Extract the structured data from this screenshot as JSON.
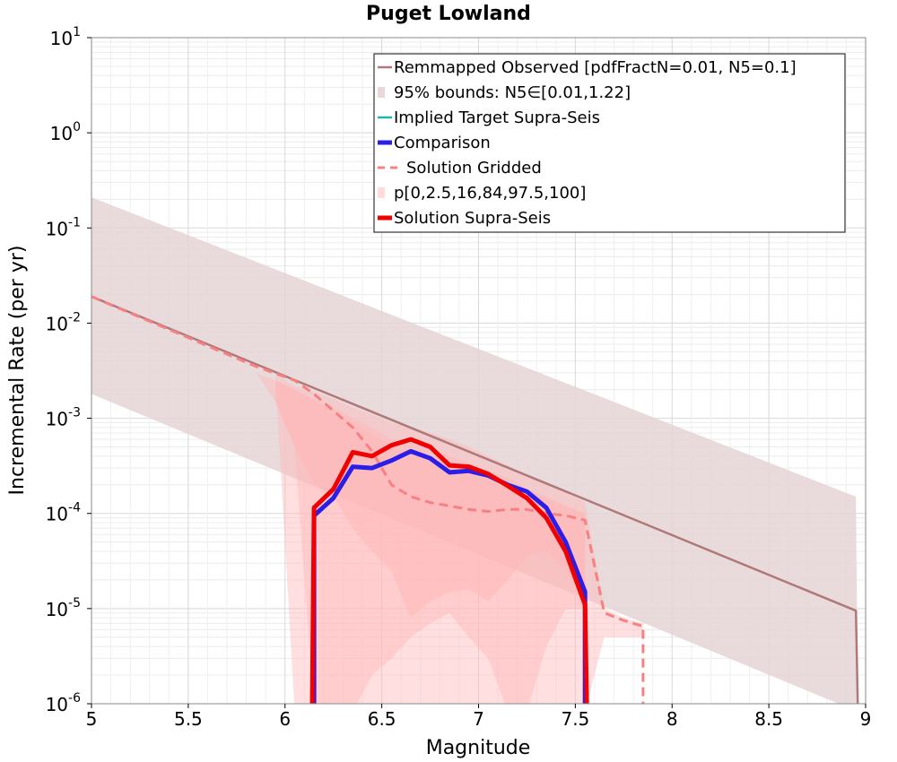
{
  "chart_data": {
    "type": "line",
    "title": "Puget Lowland",
    "xlabel": "Magnitude",
    "ylabel": "Incremental Rate (per yr)",
    "xlim": [
      5,
      9
    ],
    "ylim": [
      1e-06,
      10
    ],
    "yscale": "log",
    "grid": true,
    "legend_position": "top-right",
    "x_ticks": [
      "5",
      "5.5",
      "6",
      "6.5",
      "7",
      "7.5",
      "8",
      "8.5",
      "9"
    ],
    "y_tick_exponents": [
      "1",
      "0",
      "-1",
      "-2",
      "-3",
      "-4",
      "-5",
      "-6"
    ],
    "y_tick_base": "10",
    "colors": {
      "observed": "#b07878",
      "bounds95": "#e5d4d6",
      "implied": "#1fb5b5",
      "comparison": "#2a1ee8",
      "gridded": "#f88080",
      "percentile": "#ffd8d8",
      "supra": "#f00000"
    },
    "legend": [
      {
        "key": "observed",
        "label": "Remmapped Observed [pdfFractN=0.01, N5=0.1]",
        "style": "line"
      },
      {
        "key": "bounds95",
        "label": "95% bounds: N5∈[0.01,1.22]",
        "style": "patch"
      },
      {
        "key": "implied",
        "label": "Implied Target Supra-Seis",
        "style": "line"
      },
      {
        "key": "comparison",
        "label": "Comparison",
        "style": "thick"
      },
      {
        "key": "gridded",
        "label": "Solution Gridded",
        "style": "dashed"
      },
      {
        "key": "percentile",
        "label": "p[0,2.5,16,84,97.5,100]",
        "style": "patch"
      },
      {
        "key": "supra",
        "label": "Solution Supra-Seis",
        "style": "thick"
      }
    ],
    "series": [
      {
        "name": "Remmapped Observed [pdfFractN=0.01, N5=0.1]",
        "key": "observed",
        "x": [
          5.0,
          8.95,
          8.96
        ],
        "y": [
          0.019,
          9.5e-06,
          5e-07
        ]
      },
      {
        "name": "95% bounds: N5∈[0.01,1.22]",
        "key": "bounds95",
        "band": true,
        "x": [
          5.0,
          8.95,
          8.96
        ],
        "upper": [
          0.21,
          0.00015,
          5e-07
        ],
        "lower": [
          0.0018,
          5e-07,
          5e-07
        ]
      },
      {
        "name": "Solution Gridded",
        "key": "gridded",
        "x": [
          5.0,
          5.85,
          6.05,
          6.15,
          6.25,
          6.35,
          6.45,
          6.55,
          6.65,
          6.75,
          6.85,
          6.95,
          7.05,
          7.15,
          7.25,
          7.35,
          7.45,
          7.55,
          7.65,
          7.75,
          7.85,
          7.85
        ],
        "y": [
          0.019,
          0.0035,
          0.0025,
          0.0018,
          0.0012,
          0.0008,
          0.00045,
          0.0002,
          0.00015,
          0.00013,
          0.00012,
          0.00011,
          0.000105,
          0.00011,
          0.00011,
          0.0001,
          9.5e-05,
          8.5e-05,
          9e-06,
          7.5e-06,
          6.5e-06,
          5e-07
        ]
      },
      {
        "name": "Comparison",
        "key": "comparison",
        "x": [
          6.15,
          6.15,
          6.25,
          6.35,
          6.45,
          6.55,
          6.65,
          6.75,
          6.85,
          6.95,
          7.05,
          7.15,
          7.25,
          7.35,
          7.45,
          7.55,
          7.55
        ],
        "y": [
          5e-07,
          9.5e-05,
          0.000145,
          0.00031,
          0.0003,
          0.00036,
          0.00045,
          0.00038,
          0.00027,
          0.00028,
          0.00025,
          0.0002,
          0.00017,
          0.000115,
          5e-05,
          1.5e-05,
          5e-07
        ]
      },
      {
        "name": "Solution Supra-Seis",
        "key": "supra",
        "x": [
          6.14,
          6.15,
          6.25,
          6.35,
          6.45,
          6.55,
          6.65,
          6.75,
          6.85,
          6.95,
          7.05,
          7.15,
          7.25,
          7.35,
          7.45,
          7.55,
          7.56
        ],
        "y": [
          5e-07,
          0.000115,
          0.00018,
          0.00044,
          0.0004,
          0.00052,
          0.0006,
          0.0005,
          0.00032,
          0.00031,
          0.00026,
          0.000195,
          0.000145,
          9e-05,
          4e-05,
          1.1e-05,
          5e-07
        ]
      }
    ],
    "percentile_bands": [
      {
        "name": "p0-p100",
        "x": [
          5.85,
          5.95,
          6.05,
          6.15,
          6.25,
          6.35,
          6.45,
          6.55,
          6.65,
          6.75,
          6.85,
          6.95,
          7.05,
          7.15,
          7.25,
          7.35,
          7.45,
          7.55,
          7.65,
          7.75,
          7.85
        ],
        "upper": [
          0.0035,
          0.0028,
          0.0022,
          0.0019,
          0.0016,
          0.0013,
          0.0011,
          0.0009,
          0.0008,
          0.0007,
          0.0006,
          0.0005,
          0.0004,
          0.00032,
          0.00025,
          0.0002,
          0.00017,
          0.00013,
          1e-05,
          8e-06,
          7e-06
        ],
        "lower": [
          0.0035,
          0.0028,
          5e-07,
          5e-07,
          5e-07,
          5e-07,
          5e-07,
          5e-07,
          5e-07,
          5e-07,
          5e-07,
          5e-07,
          5e-07,
          5e-07,
          5e-07,
          5e-07,
          5e-07,
          5e-07,
          5e-06,
          5e-06,
          5e-06
        ]
      },
      {
        "name": "p2.5-p97.5",
        "x": [
          5.85,
          5.95,
          6.05,
          6.15,
          6.25,
          6.35,
          6.45,
          6.55,
          6.65,
          6.75,
          6.85,
          6.95,
          7.05,
          7.15,
          7.25,
          7.35,
          7.45,
          7.55
        ],
        "upper": [
          0.003,
          0.0025,
          0.002,
          0.0016,
          0.0013,
          0.001,
          0.0008,
          0.0006,
          0.00055,
          0.00048,
          0.0004,
          0.00034,
          0.00028,
          0.00024,
          0.00018,
          0.00014,
          0.00012,
          0.0001
        ],
        "lower": [
          0.003,
          0.0015,
          0.0005,
          5e-07,
          5e-07,
          5e-07,
          2e-06,
          3e-06,
          5e-06,
          7e-06,
          9e-06,
          5e-06,
          3e-06,
          5e-07,
          5e-07,
          4e-06,
          1e-05,
          1e-05
        ]
      },
      {
        "name": "p16-p84",
        "x": [
          5.95,
          6.05,
          6.15,
          6.25,
          6.35,
          6.45,
          6.55,
          6.65,
          6.75,
          6.85,
          6.95,
          7.05,
          7.15,
          7.25,
          7.35,
          7.45,
          7.55
        ],
        "upper": [
          0.0025,
          0.002,
          0.0015,
          0.0012,
          0.0009,
          0.0007,
          0.0005,
          0.00045,
          0.0004,
          0.00035,
          0.0003,
          0.00025,
          0.0002,
          0.00018,
          0.00015,
          0.00012,
          0.0001
        ],
        "lower": [
          0.0015,
          0.0005,
          0.0002,
          0.00015,
          7e-05,
          4e-05,
          2.5e-05,
          8e-06,
          1.2e-05,
          1.5e-05,
          1.6e-05,
          1.2e-05,
          2e-05,
          3.5e-05,
          4e-05,
          2.5e-05,
          1.2e-05
        ]
      }
    ]
  }
}
